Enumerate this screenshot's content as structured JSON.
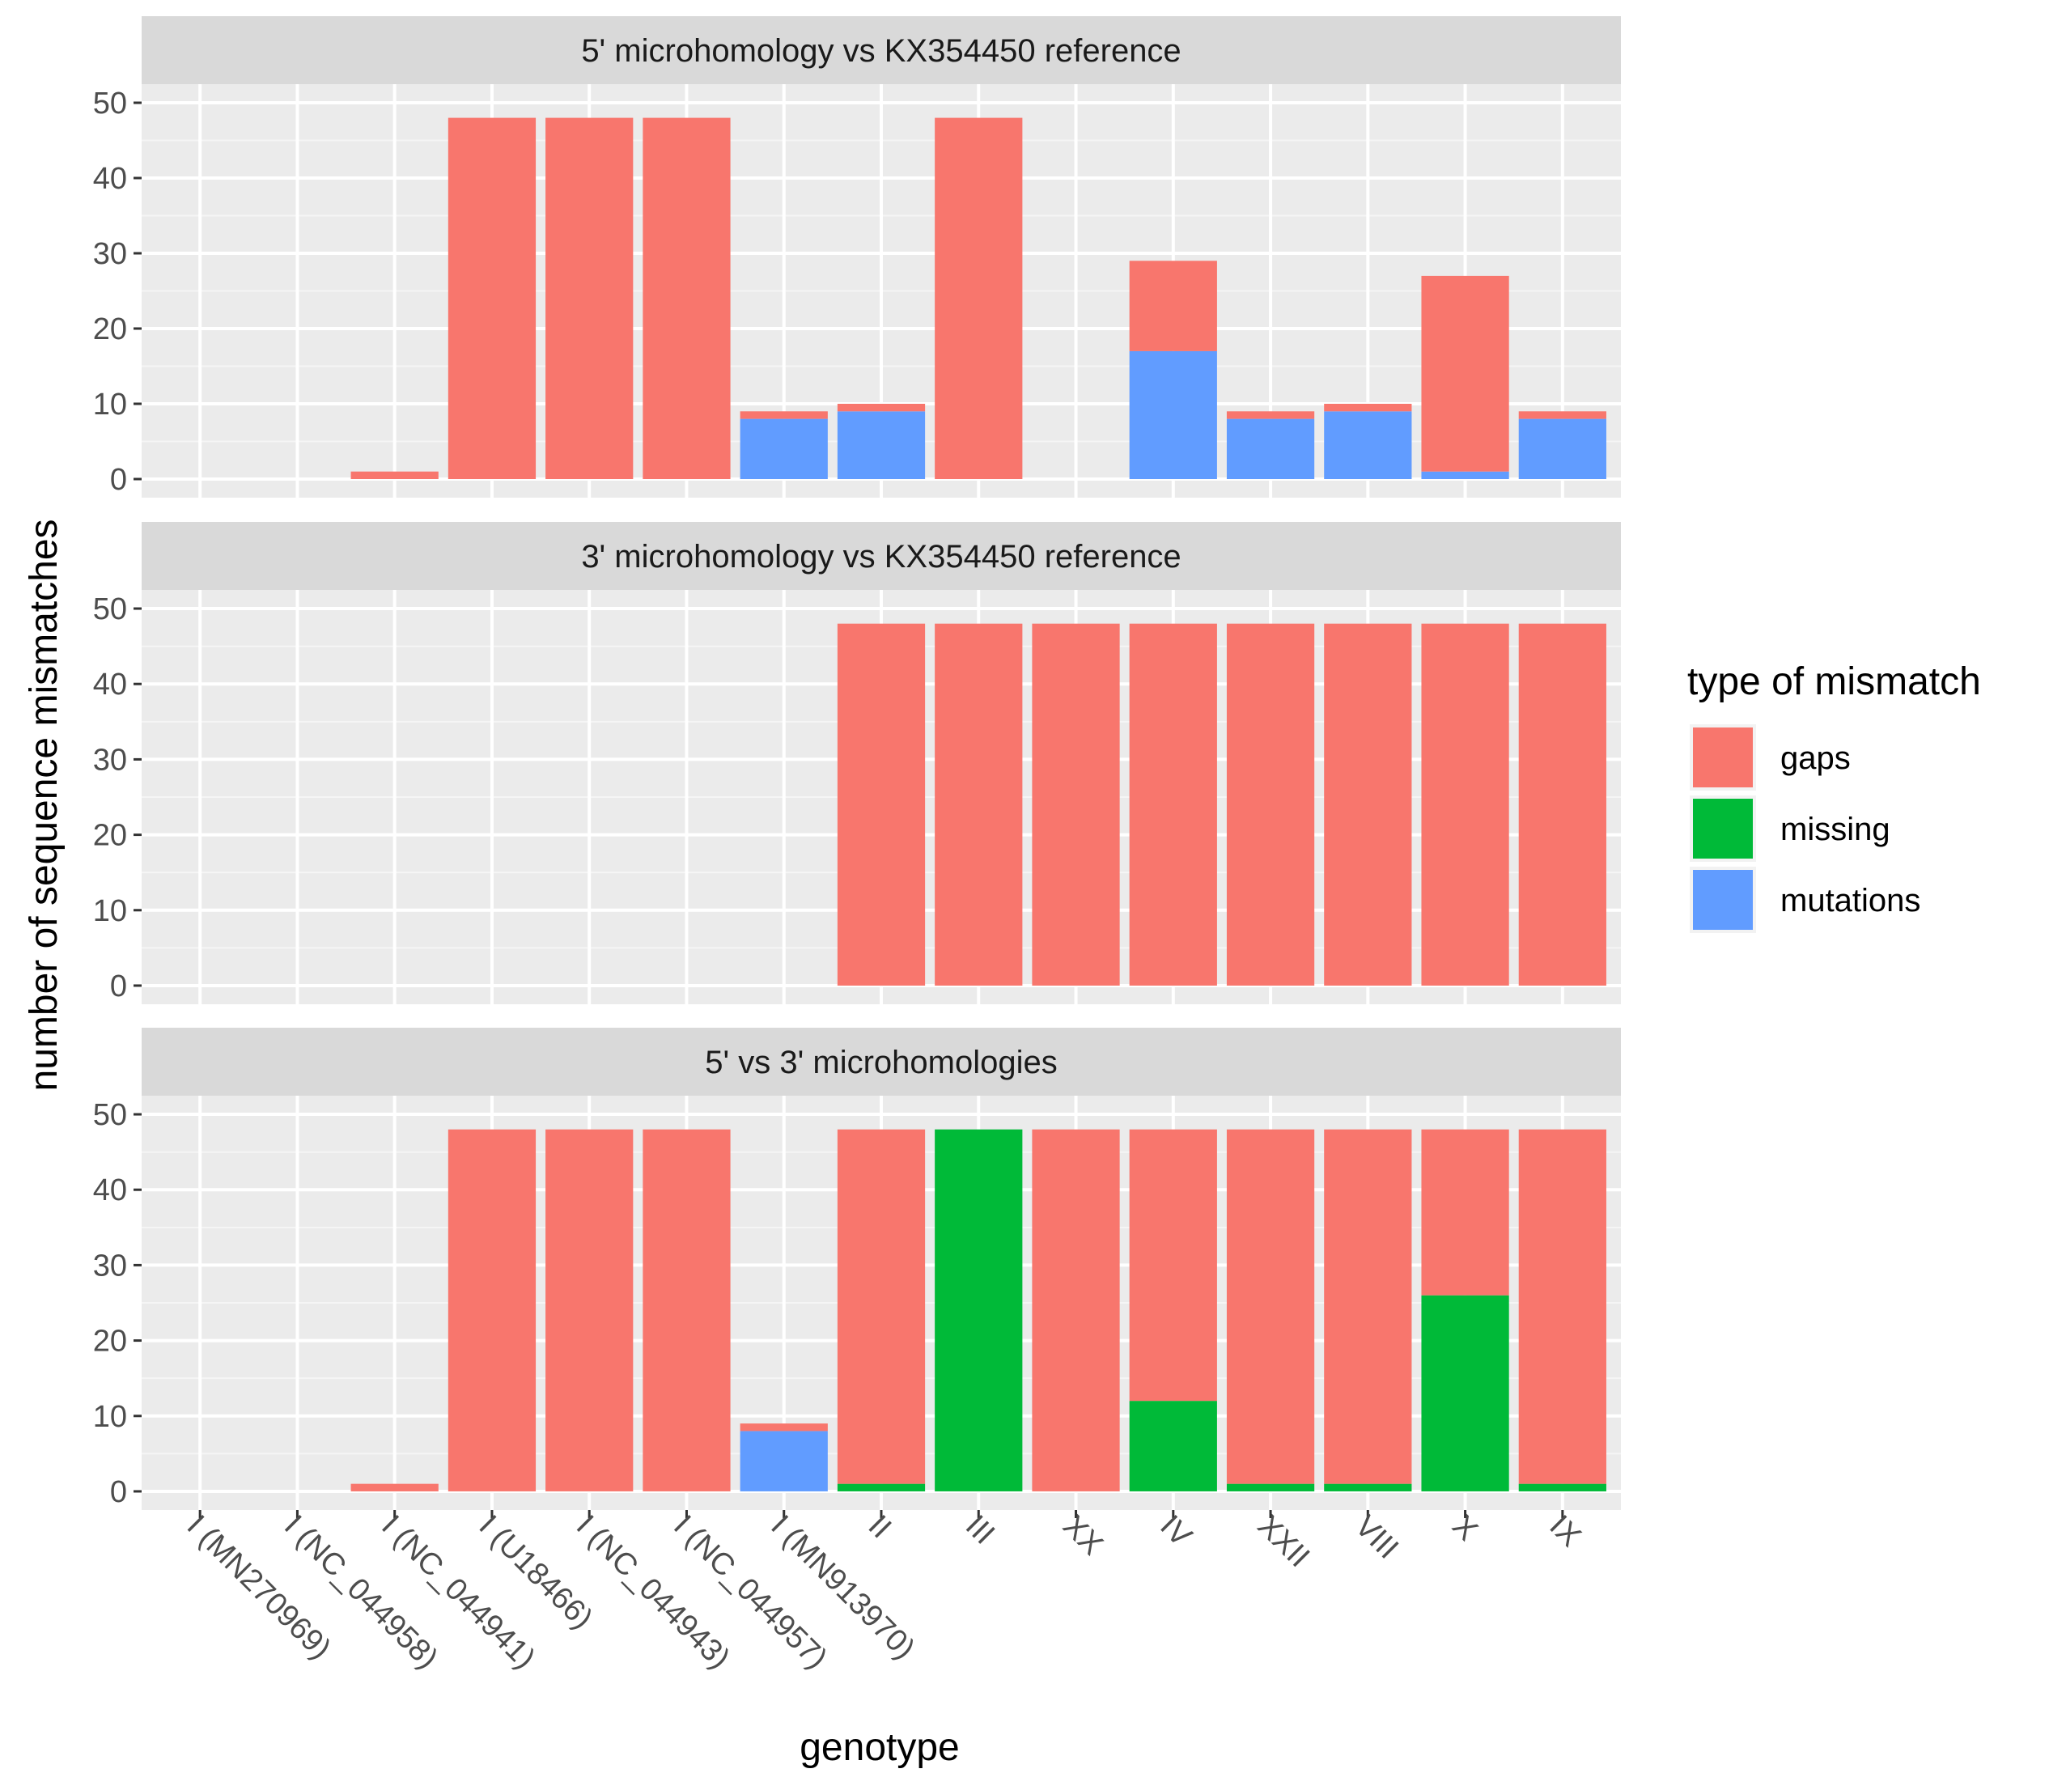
{
  "chart_data": {
    "type": "bar",
    "stacked": true,
    "xlabel": "genotype",
    "ylabel": "number of sequence mismatches",
    "ylim": [
      0,
      50
    ],
    "yticks": [
      0,
      10,
      20,
      30,
      40,
      50
    ],
    "categories": [
      "I (MN270969)",
      "I (NC_044958)",
      "I (NC_044941)",
      "I (U18466)",
      "I (NC_044943)",
      "I (NC_044957)",
      "I (MN913970)",
      "II",
      "III",
      "XX",
      "IV",
      "XXII",
      "VIII",
      "X",
      "IX"
    ],
    "legend": {
      "title": "type of mismatch",
      "position": "right",
      "entries": [
        {
          "label": "gaps",
          "color": "#F8766D"
        },
        {
          "label": "missing",
          "color": "#00BA38"
        },
        {
          "label": "mutations",
          "color": "#619CFF"
        }
      ]
    },
    "stack_order": [
      "mutations",
      "missing",
      "gaps"
    ],
    "panels": [
      {
        "title": "5' microhomology vs KX354450 reference",
        "series": [
          {
            "name": "gaps",
            "values": [
              0,
              0,
              1,
              48,
              48,
              48,
              1,
              1,
              48,
              0,
              12,
              1,
              1,
              26,
              1
            ]
          },
          {
            "name": "missing",
            "values": [
              0,
              0,
              0,
              0,
              0,
              0,
              0,
              0,
              0,
              0,
              0,
              0,
              0,
              0,
              0
            ]
          },
          {
            "name": "mutations",
            "values": [
              0,
              0,
              0,
              0,
              0,
              0,
              8,
              9,
              0,
              0,
              17,
              8,
              9,
              1,
              8
            ]
          }
        ]
      },
      {
        "title": "3' microhomology vs KX354450 reference",
        "series": [
          {
            "name": "gaps",
            "values": [
              0,
              0,
              0,
              0,
              0,
              0,
              0,
              48,
              48,
              48,
              48,
              48,
              48,
              48,
              48
            ]
          },
          {
            "name": "missing",
            "values": [
              0,
              0,
              0,
              0,
              0,
              0,
              0,
              0,
              0,
              0,
              0,
              0,
              0,
              0,
              0
            ]
          },
          {
            "name": "mutations",
            "values": [
              0,
              0,
              0,
              0,
              0,
              0,
              0,
              0,
              0,
              0,
              0,
              0,
              0,
              0,
              0
            ]
          }
        ]
      },
      {
        "title": "5' vs 3' microhomologies",
        "series": [
          {
            "name": "gaps",
            "values": [
              0,
              0,
              1,
              48,
              48,
              48,
              1,
              47,
              0,
              48,
              36,
              47,
              47,
              22,
              47
            ]
          },
          {
            "name": "missing",
            "values": [
              0,
              0,
              0,
              0,
              0,
              0,
              0,
              1,
              48,
              0,
              12,
              1,
              1,
              26,
              1
            ]
          },
          {
            "name": "mutations",
            "values": [
              0,
              0,
              0,
              0,
              0,
              0,
              8,
              0,
              0,
              0,
              0,
              0,
              0,
              0,
              0
            ]
          }
        ]
      }
    ]
  }
}
